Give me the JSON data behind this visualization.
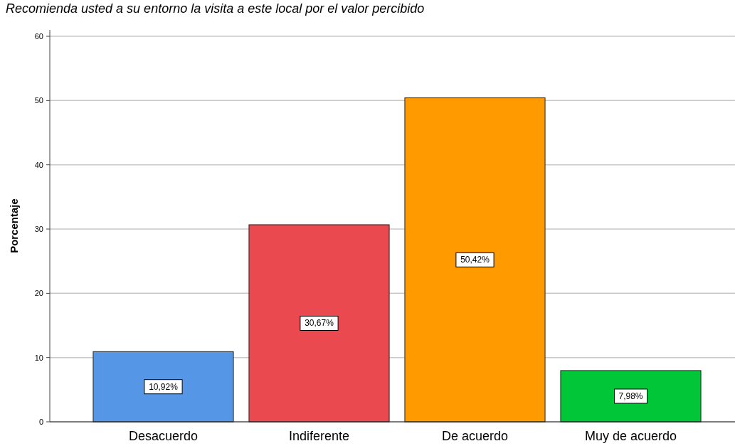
{
  "chart_data": {
    "type": "bar",
    "title": "Recomienda usted a su entorno la visita a este local por el valor percibido",
    "ylabel": "Porcentaje",
    "categories": [
      "Desacuerdo",
      "Indiferente",
      "De acuerdo",
      "Muy de acuerdo"
    ],
    "values": [
      10.92,
      30.67,
      50.42,
      7.98
    ],
    "colors": [
      "#5596e6",
      "#e9494f",
      "#ff9a00",
      "#00c638"
    ],
    "value_labels": [
      "10,92%",
      "30,67%",
      "50,42%",
      "7,98%"
    ],
    "ylim": [
      0,
      61
    ],
    "yticks": [
      0,
      10,
      20,
      30,
      40,
      50,
      60
    ],
    "grid": "y"
  }
}
